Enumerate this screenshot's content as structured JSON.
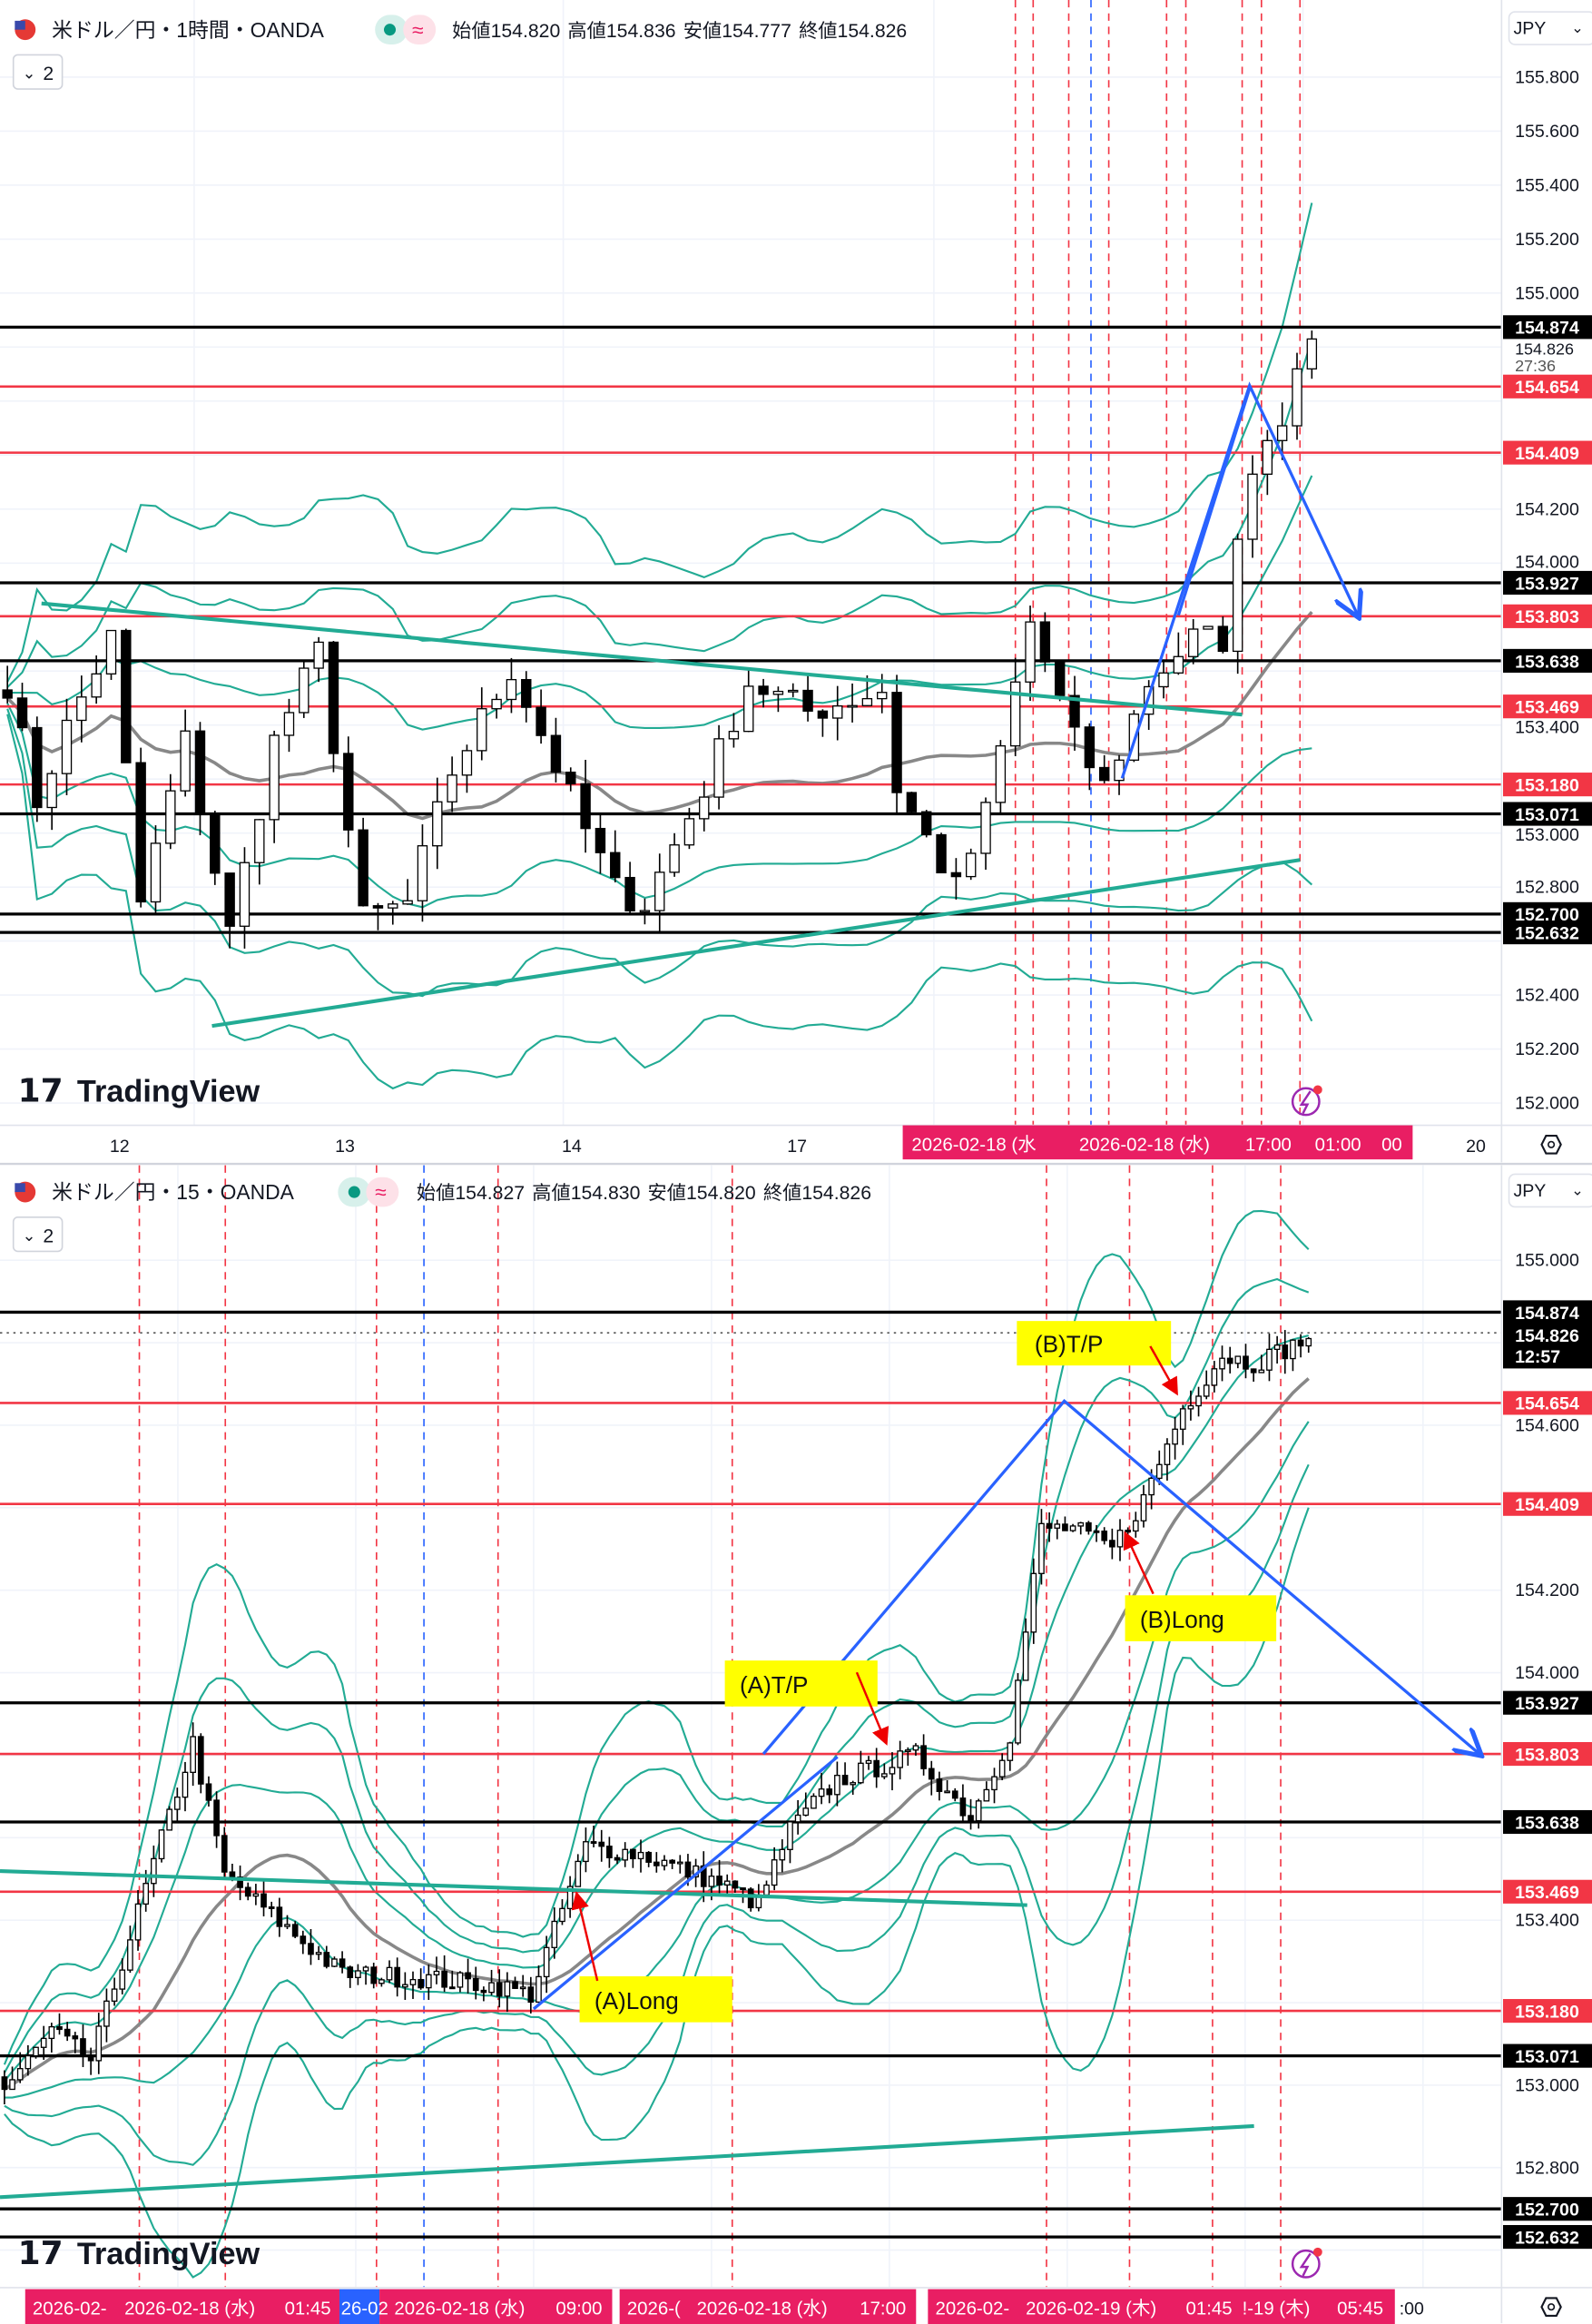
{
  "charts": [
    {
      "id": "top",
      "title": "米ドル／円・1時間・OANDA",
      "ohlc": {
        "open_label": "始値",
        "open": "154.820",
        "high_label": "高値",
        "high": "154.836",
        "low_label": "安値",
        "low": "154.777",
        "close_label": "終値",
        "close": "154.826"
      },
      "indicator_count": "2",
      "currency": "JPY",
      "price_ticks": [
        "155.800",
        "155.600",
        "155.400",
        "155.200",
        "155.000",
        "154.200",
        "154.000",
        "153.400",
        "153.000",
        "152.800",
        "152.400",
        "152.200",
        "152.000"
      ],
      "last_price": "154.826",
      "countdown": "27:36",
      "time_labels": [
        "12",
        "13",
        "14",
        "17",
        "20"
      ],
      "time_highlight": [
        "2026-02-18 (水",
        "2026-02-18 (水)",
        "17:00",
        "01:00",
        "00"
      ],
      "logo": "TradingView"
    },
    {
      "id": "bottom",
      "title": "米ドル／円・15・OANDA",
      "ohlc": {
        "open_label": "始値",
        "open": "154.827",
        "high_label": "高値",
        "high": "154.830",
        "low_label": "安値",
        "low": "154.820",
        "close_label": "終値",
        "close": "154.826"
      },
      "indicator_count": "2",
      "currency": "JPY",
      "price_ticks": [
        "155.000",
        "154.600",
        "154.200",
        "154.000",
        "153.400",
        "153.000",
        "152.800"
      ],
      "last_price": "154.826",
      "countdown": "12:57",
      "time_highlight": [
        "2026-02-",
        "2026-02-18 (水)",
        "01:45",
        "26-02",
        "2026-02-18 (水)",
        "09:00",
        "2026-(",
        "2026-02-18 (水)",
        "17:00",
        "2026-02-",
        "2026-02-19 (木)",
        "01:45",
        "!-19 (木)",
        "05:45",
        ":00"
      ],
      "annotations": [
        "(B)T/P",
        "(B)Long",
        "(A)T/P",
        "(A)Long"
      ],
      "logo": "TradingView"
    }
  ],
  "levels": {
    "black": [
      "154.874",
      "153.927",
      "153.638",
      "153.071",
      "152.700",
      "152.632"
    ],
    "red": [
      "154.654",
      "154.409",
      "153.803",
      "153.469",
      "153.180"
    ]
  },
  "colors": {
    "black_level": "#000000",
    "red_level": "#f23645",
    "band": "#22ab94",
    "ma": "#888888",
    "drawing": "#2962ff",
    "annotation_bg": "#ffff00",
    "time_highlight": "#e91e63",
    "up": "#ffffff",
    "down": "#000000"
  },
  "chart_data": [
    {
      "type": "candlestick",
      "timeframe": "1h",
      "ylim": [
        152.0,
        155.8
      ],
      "x_ticks": [
        "12",
        "13",
        "14",
        "17",
        "20"
      ],
      "close_waypoints_bar_price": [
        [
          0,
          153.56
        ],
        [
          2,
          153.12
        ],
        [
          4,
          153.39
        ],
        [
          7,
          153.72
        ],
        [
          9,
          152.74
        ],
        [
          12,
          153.34
        ],
        [
          15,
          152.63
        ],
        [
          18,
          153.34
        ],
        [
          21,
          153.67
        ],
        [
          24,
          152.68
        ],
        [
          27,
          152.74
        ],
        [
          30,
          153.23
        ],
        [
          34,
          153.61
        ],
        [
          39,
          153.01
        ],
        [
          41,
          152.79
        ],
        [
          43,
          152.74
        ],
        [
          47,
          153.17
        ],
        [
          50,
          153.56
        ],
        [
          54,
          153.45
        ],
        [
          59,
          153.53
        ],
        [
          60,
          153.17
        ],
        [
          64,
          152.79
        ],
        [
          66,
          153.07
        ],
        [
          69,
          153.78
        ],
        [
          72,
          153.34
        ],
        [
          74,
          153.17
        ],
        [
          77,
          153.56
        ],
        [
          80,
          153.72
        ],
        [
          82,
          153.72
        ],
        [
          84,
          154.38
        ],
        [
          86,
          154.55
        ],
        [
          87,
          154.77
        ],
        [
          88,
          154.83
        ]
      ],
      "indicators": [
        "SMA",
        "Bollinger Bands ±1σ ±2σ ±3σ"
      ]
    },
    {
      "type": "candlestick",
      "timeframe": "15m",
      "ylim": [
        152.6,
        155.1
      ],
      "close_waypoints_bar_price": [
        [
          0,
          152.99
        ],
        [
          6,
          153.13
        ],
        [
          11,
          153.06
        ],
        [
          17,
          153.42
        ],
        [
          24,
          153.83
        ],
        [
          28,
          153.51
        ],
        [
          36,
          153.38
        ],
        [
          43,
          153.27
        ],
        [
          53,
          153.26
        ],
        [
          63,
          153.24
        ],
        [
          67,
          153.22
        ],
        [
          74,
          153.58
        ],
        [
          81,
          153.56
        ],
        [
          91,
          153.49
        ],
        [
          96,
          153.44
        ],
        [
          100,
          153.62
        ],
        [
          106,
          153.74
        ],
        [
          116,
          153.8
        ],
        [
          123,
          153.65
        ],
        [
          128,
          153.85
        ],
        [
          132,
          154.35
        ],
        [
          136,
          154.35
        ],
        [
          141,
          154.3
        ],
        [
          145,
          154.42
        ],
        [
          150,
          154.64
        ],
        [
          155,
          154.77
        ],
        [
          159,
          154.75
        ],
        [
          166,
          154.81
        ]
      ],
      "indicators": [
        "SMA",
        "Bollinger Bands ±1σ ±2σ ±3σ"
      ]
    }
  ]
}
